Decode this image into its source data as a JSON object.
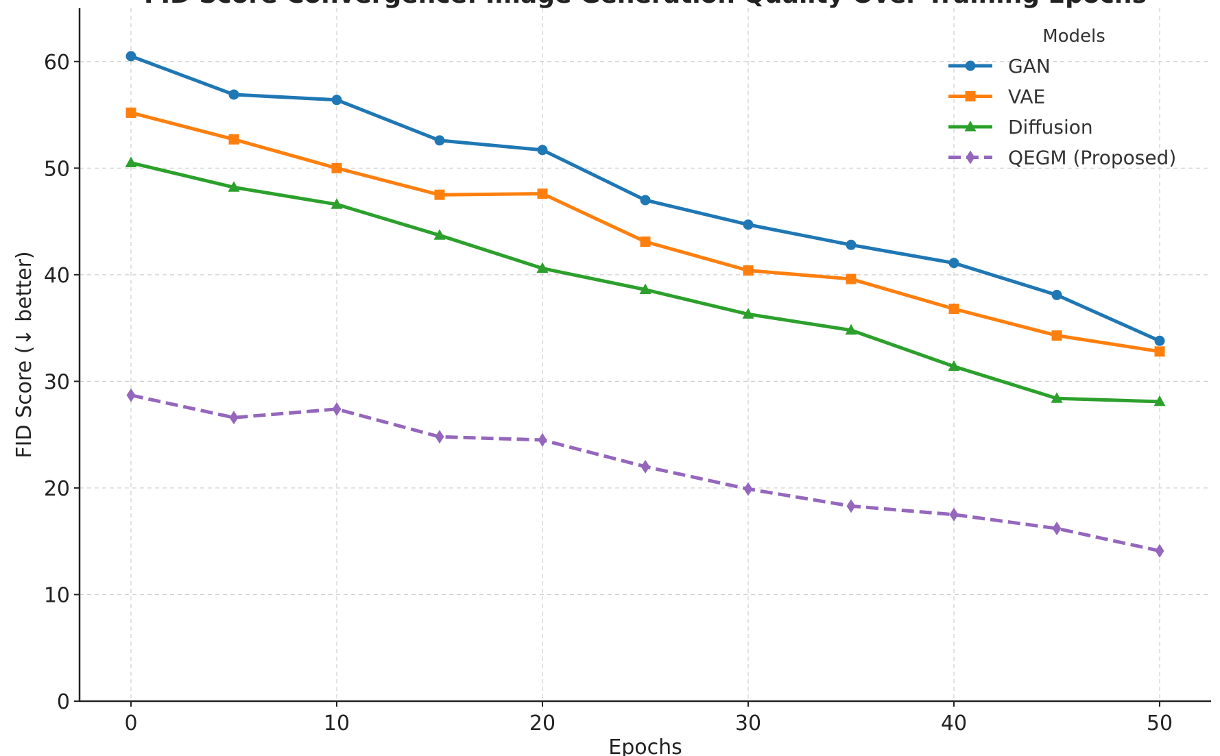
{
  "chart_data": {
    "type": "line",
    "title": "FID Score Convergence: Image Generation Quality Over Training Epochs",
    "xlabel": "Epochs",
    "ylabel": "FID Score (↓ better)",
    "x": [
      0,
      5,
      10,
      15,
      20,
      25,
      30,
      35,
      40,
      45,
      50
    ],
    "xlim": [
      -2.5,
      52.5
    ],
    "ylim": [
      0,
      65
    ],
    "xticks": [
      0,
      10,
      20,
      30,
      40,
      50
    ],
    "yticks": [
      0,
      10,
      20,
      30,
      40,
      50,
      60
    ],
    "grid": true,
    "legend_title": "Models",
    "legend_position": "top-right",
    "series": [
      {
        "name": "GAN",
        "color": "#1f77b4",
        "marker": "circle",
        "linestyle": "solid",
        "values": [
          60.5,
          56.9,
          56.4,
          52.6,
          51.7,
          47.0,
          44.7,
          42.8,
          41.1,
          38.1,
          33.8
        ]
      },
      {
        "name": "VAE",
        "color": "#ff7f0e",
        "marker": "square",
        "linestyle": "solid",
        "values": [
          55.2,
          52.7,
          50.0,
          47.5,
          47.6,
          43.1,
          40.4,
          39.6,
          36.8,
          34.3,
          32.8
        ]
      },
      {
        "name": "Diffusion",
        "color": "#2ca02c",
        "marker": "triangle",
        "linestyle": "solid",
        "values": [
          50.5,
          48.2,
          46.6,
          43.7,
          40.6,
          38.6,
          36.3,
          34.8,
          31.4,
          28.4,
          28.1
        ]
      },
      {
        "name": "QEGM (Proposed)",
        "color": "#9467bd",
        "marker": "diamond",
        "linestyle": "dashed",
        "values": [
          28.7,
          26.6,
          27.4,
          24.8,
          24.5,
          22.0,
          19.9,
          18.3,
          17.5,
          16.2,
          14.1
        ]
      }
    ]
  }
}
